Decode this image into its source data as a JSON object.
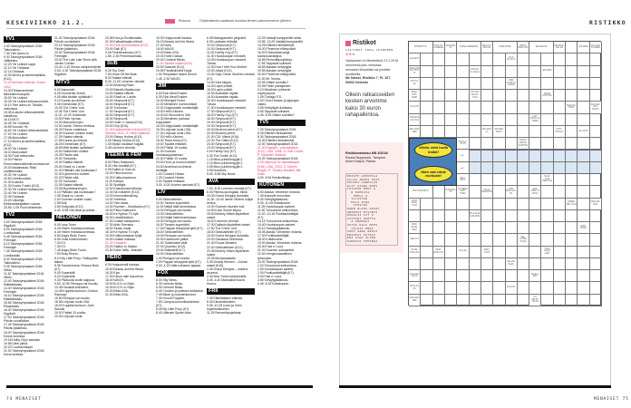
{
  "header": {
    "left_title": "KESKIVIIKKO 21.2.",
    "legend_label": "Elokuva",
    "notice": "Ohjelmatiedot saattavat muuttua lehden painoonmenon jälkeen.",
    "right_title": "RISTIKKO",
    "film_color": "#e0406f",
    "accent": "#e7577f"
  },
  "footer": {
    "left": "74 MENAISET",
    "right": "MENAISET 75"
  },
  "columns": [
    [
      {
        "channel": "TV1",
        "items": [
          "4.40 Talviolympialaiset 2018: Taitoluistelu.",
          "7.30 Ylen Aamu-tv.",
          "9.00 Talviolympialaiset 2018: Jääkiekko.",
          "12.03 Yle Uutiset Lappi.",
          "12.10 Yle Oddasat.",
          "12.14 Oddasat.",
          "12.30 Murha ja kantrimusiikkia (K12).",
          {
            "t": "13.20 Morsian vihkiväs. Suomi, 1941.",
            "film": true
          },
          "14.30 Rintamamiehen talonrakennusopas.",
          "15.00 Yle Uutiset.",
          "15.05 Yle Uutiset selkosuomeksi.",
          "15.10 Ylen aamu-tv: Tänään otsikoissa.",
          "15.45 A-studio viittomakielellä tulkattuna.",
          "16.15 MOT.",
          "16.45 Yle Oddasat.",
          "16.55 Novosti Yle.",
          "16.59 Yle Uutiset viittomakielellä.",
          "17.00 Yle Uutiset.",
          "17.08 Alueuutiset.",
          "17.10 Murha ja kantrimusiikkia (K12).",
          "18.00 Yle Uutiset.",
          "18.22 Alueuutiset.",
          "18.30 Puoli seitsemän.",
          "19.00 Prisma: Ennennäkemättömät luontokuvat.",
          "20.00 Maailmasta: Rikki uhattelemalla.",
          "20.30 Yle Uutiset.",
          "20.50 Urheiluuutiset.",
          "21.00 A-studio.",
          "21.30 Doctor Foster (K12).",
          "22.30 Yle Uutiset Uutissuomi.",
          "22.40 Yle Uutiset.",
          "22.45 Oddasat.",
          "23.00 Ulkolinja: Elektroniikkajätteen vaarat.",
          "23.55 -0.25 Puoli seitsemän."
        ]
      },
      {
        "channel": "TV2",
        "items": [
          "4.00 Talviolympialaiset 2018: Kigpilotit.",
          "5.00 Talviolympialaiset 2018: Lumilautailu.",
          "5.45 Talviolympialaiset 2018: Freestyle.",
          "6.10 Talviolympialaiset 2018: Freestyle.",
          "7.45 Talviolympialaiset 2018: Lumilautailu.",
          "8.30 Talviolympialaiset 2018: Taitoluistelu.",
          "9.05 Talviolympialaiset 2018: Hiihto.",
          "11.30 Talviolympialaiset 2018: Hiihto.",
          "12.40 Talviolympialaiset 2018: Rattikelkkailu.",
          "14.40 Talviolympialaiset 2018: Freestyle.",
          "15.10 Talviolympialaiset 2018: Rattikelkkailu.",
          "15.55 Talviolympialaiset 2018: Pikaluistelu.",
          "16.40 Talviolympialaiset 2018: Kigpilotit.",
          "17.00 Talviolympialaiset 2018: Päivän suosikkiset.",
          "17.45 Talviolympialaiset 2018: Päivän jääkiekko.",
          "18.00 Talviolympialaiset 2018: Koose lunnissa.",
          "19.18 Holby Cityn sairaala.",
          "19.58 Ulesi päivä.",
          "20.20 Cuveldonsiaali.",
          "21.00 Talviolympialaiset 2018: Korva luniissa."
        ]
      }
    ],
    [
      {
        "channel": "",
        "items": [
          "21.30 Talviolympialaiset 2018: Päivän suosikkiset.",
          "23.15 Talviolympialaiset 2018: Päivän jääkiekko.",
          "23.30 Talviolympialaiset 2018: Freestyle.",
          "23.00 The Late Late Show with James Corden.",
          "23.40 -0.10 Rouva varapresidentti.",
          "3.05 -4.30 Talviolympialaiset 2018: Kigpilotit."
        ]
      },
      {
        "channel": "MTV3",
        "items": [
          "6.00 Aamusää.",
          "6.25 Huomenta Suomi.",
          "9.05 Mitä tänään syötäisiin?",
          "9.10 Kaunis ja rohkeat.",
          "9.35 Emmerdale (K7).",
          "10.05 The Chefs' Line.",
          "10.35 The Chefs' Line.",
          "11.00 -12.00 Kokkisota.",
          "13.00 Peter Nyman.",
          "14.00 Manuela kojeo.",
          "14.30 Jamie: Olivera herkkua.",
          "15.30 Pinnan mattoissa.",
          "16.30 Suomen surkein kuski.",
          "17.25 Salatut elämät.",
          "17.55 Kaunis ja rohkeat.",
          "18.25 Emmerdale (K7).",
          "18.55 Mitä tänään syötäisiin?",
          "19.00 Seitsemän Uutiset.",
          "19.25 Päivän sää.",
          "19.30 Tuhkanan.",
          "19.30 Salatut elämät.",
          "20.00 Shadi vs. Lande.",
          "21.00 Pitäisikö olla huolissaan?",
          "22.00 Kymmenen Uutiset.",
          "22.20 Päivän sää.",
          "22.25 Tuhkanan.",
          "22.35 Salatut elämät.",
          "23.05 Myyräntraumojen.",
          "0.10 Pitäisikö olla huolissaan?",
          "1.05 Shadi vs. Lande.",
          "2.00 Suomen surkein kuski.",
          "2.55 Bull.",
          "3.50 Hollyoaks (K12).",
          "4.40 -5.55 Ole rahat ja poikse."
        ]
      },
      {
        "channel": "NELONEN",
        "items": [
          "6.00 Lazy Town.",
          "6.25 Hiisen Hokkasuomiesaa.",
          "6.40 Hiisen Hokkasuomiesaa.",
          "6.50 Angry Birds Toons.",
          "6.55 Sofia ensimmäinen.",
          "7.20 K3.",
          "7.30 K3.",
          "7.45 Angry Birds Toons.",
          "7.50 Busy Rivers.",
          "8.10 My Little Pony: Ystävyyden taikaa.",
          "8.35 Transformers: Rescue Bots (K7).",
          "9.00 Supersiitti.",
          "9.20 Supersiitti.",
          "9.30 Pikakunsi kodin saippua.",
          "9.50 -10.50 Remppa vai muutto.",
          "13.45 Hauskat kotivideot.",
          "14.45 Kuppilat kuntoon, Gordon Ramsay!",
          "15.50 Remppa vai muutto.",
          "16.55 Leijonan luola USA.",
          "18.00 Kuppilat kuntoon, Jyrki Sukula!",
          "19.00 Poliisit 10 vuotta.",
          "20.00 Leijonan luola."
        ]
      }
    ],
    [
      {
        "channel": "",
        "items": [
          "20.58 Kers ja Suvitaivaalla.",
          "21.00 Kattoahtaajan elämä.",
          {
            "t": "22.00 Perin pennevillissä (K12).",
            "film": true
          },
          "23.00 Salli (K7).",
          "0.05 Perintöraamasu (K7).",
          "1.55 -2.30 Perintöraamasu."
        ]
      },
      {
        "channel": "SUB",
        "items": [
          "6.25 Top Chef.",
          "7.00 Hook Off the Boat.",
          "8.00 Salatut elämät.",
          "8.30 -11.00 Lemmen viemää.",
          "12.00 Amazing Race.",
          "13.00 Blandis Mystiscope.",
          "14.00 Salatut elämät.",
          "14.30 Shadi vs. Lande.",
          "15.00 Simpsonit (K7).",
          "16.00 Simpsonit (K7).",
          "16.30 Tuhkanan.",
          "17.00 Simpsonit (K7).",
          "18.00 Simpsonit (K7).",
          "18.30 Simpsonit.",
          "19.00 Hotel -0 Jaana (K16).",
          "20.00 Guy (K16).",
          {
            "t": "21.00 Kadonneiden Hirmut (K12). Ranska, 2011. O: Henri Natacha.",
            "film": true
          },
          "23.00 Sleepy Hollow (K12).",
          "0.00 Sleepy Hollow (K12).",
          "1.00 Myllyn kaufasm huijyllä.",
          "2.45 Lemmen viemää."
        ]
      },
      {
        "channel": "TEEMA & FEM",
        "items": [
          "6.00 Pikku Kakkonen.",
          "8.20 Ylen kantiillä (K7).",
          "9.05 Kaikki on ihan ok.",
          "10.00 Pikku kunnon.",
          "10.30 Kulttuuriavaruus.",
          "11.00 Kampa.",
          "11.30 Spotlight.",
          "12.00 Kaanoimaan lähetys.",
          "12.30 Sin näkkeen (K12).",
          "13.00 Innocentbreaking.",
          "13.30 Yokitrivia.",
          "14.00 Ylen kaasi.",
          "14.30 Rauhari – Muotisalon (K7).",
          "15.00 Pikku Kakkonen.",
          "16.00 Ke Nybrar TV-nytt.",
          "16.30 Leksikblokken.",
          "17.00 Uutiset rakkauteen.",
          "17.30 Arkki Svenska.",
          "18.00 Studio maail.",
          "18.30 Ke Nybrar TV-nytt.",
          "19.00 Kulttuurivaaran tyhjä.",
          "19.30 Uutiset maksaa.",
          {
            "t": "21.30 Chaplinin",
            "film": true
          },
          "23.20 Station to Station.",
          "23.50 Sami Yaffa - Ihtacker."
        ]
      },
      {
        "channel": "HERO",
        "items": [
          "6.30 Hulppomalli haussa.",
          "15.00 Beauty and the Beast.",
          "16.30 Epic.",
          "17.00 Kirkon laite kokoelma.",
          "18.00 WAGS.",
          "19.00 B.O.N. to Style.",
          "19.30 B.O.N. to Style.",
          "20.00 Bella USA.",
          "21.00 Bella USA."
        ]
      }
    ],
    [
      {
        "channel": "",
        "items": [
          "15.30 Hulppomalli haussa.",
          "16.15 Beauty and the Beast.",
          "17.00 Idols.",
          "18.00 WAGS.",
          "19.00 Bella USA.",
          "19.30 Hotel Caesar.",
          "20.00 Criminal Minds.",
          {
            "t": "21.00 Taloani orjaan (K16).",
            "film": true
          },
          "23.50 Scandal (K12).",
          "23.55 Paratiisihotelli Norja.",
          "1.00 Temptation Island Suomi.",
          "1.45 -2.30 WAGS."
        ]
      },
      {
        "channel": "JIM",
        "items": [
          "6.00 Epic Meal Empire.",
          "6.30 Epic Meal Empire.",
          "10.00 Midnight Feast.",
          "11.00 Mestimen muhvimestari.",
          "12.00 Hulppulastin metsästäjät.",
          "13.00 Hell's Kitchen.",
          "14.00 60 Seconds to Sell.",
          "14.30 Mestimen parhaat huipulaiset.",
          "15.30 Hulppulastin metsästäjät.",
          "16.30 Leijonan luola USA.",
          "17.00 Leijonan luola USA.",
          "17.30 Hell's Kitchen.",
          "18.30 Team Anna (K7).",
          "19.00 Tipaleti erillaiset.",
          "20.00 Poliisit 10 vuotta.",
          "21.00 Suomen huutokauppakeisari.",
          "22.00 Poliisit 10 vuotta.",
          "23.00 Hoot- ja huonot uutiset.",
          "24.00 Amerikan kovimmat keräilijät.",
          "1.00 Consent Heads.",
          "1.30 Consent Heads.",
          "2.00 Tipaleti erillaiset.",
          "3.00 -4.00 Vuorien sankarit (K7)."
        ]
      },
      {
        "channel": "LIV",
        "items": [
          "9.00 Sinkkutellinen.",
          "10.00 Tanssin supertähti.",
          "11.00 Neljät häät Amerikassa.",
          "13.00 Remppa vai muutto.",
          "13.00 Sinkkutellinen.",
          "14.00 Neljät häät Amerikassa.",
          "15.00 Remppa vai muutto.",
          "16.00 Tanssin supertähti.",
          "17.00 Pappan tekopyhät tytöt (K7).",
          "18.00 Sinkkutellinen.",
          "19.00 Remppa vai muutto.",
          "20.00 Kadonneet pätkä.",
          "21.00 Toisenlaiset äidit.",
          "22.00 Quantico (K12).",
          "23.00 Nalkuttelit (K7).",
          "24.00 Sinkkutellinen.",
          "1.00 Remppa vai muutto.",
          "2.00 Pappan tekopyhät tytöt (K7).",
          "3.00 -4.15 Häät sulhasen tapaan."
        ]
      },
      {
        "channel": "FOX",
        "items": [
          "6.00 Sky News.",
          "6.30 Lehmän Nikku.",
          "6.30 Lehmän Nikku.",
          "6.40 Chuckin ja ystävien seikkailut.",
          "7.05 Blaze ja monsterikoneet.",
          "7.30 Hound Puppies.",
          "7.50 Campus-kummitustoimisto (K7).",
          "8.30 My Little Pony (K7).",
          "8.40 Ultimate Spider-Man."
        ]
      }
    ],
    [
      {
        "channel": "",
        "items": [
          "6.05 Madagascarin pingviinit.",
          "6.30 Lastkaan elämää.",
          "10.00 Simpsonit (K7).",
          "10.30 Simpsonit (K7).",
          "11.00 Family Guy (K7).",
          "11.30 Huutokaupan mestarit.",
          "12.00 Huutokaupan mestarit: Tolvaa.",
          "12.30 How I Met Your Mother.",
          "13.00 Jalpia (K12).",
          "13.30 Stop Crime: Murhien mestari (K7).",
          "14.00 Sani kiippia.",
          "14.30 Lapin poliisit.",
          "15.00 Lapin poliisit.",
          "15.30 Australian rajalla.",
          "16.00 Australian rajalla.",
          "16.30 Huutokaupan mestarit: Tolvaa.",
          "17.00 Huutokaupan mestarit.",
          "17.30 Simpsonit (K7).",
          "18.00 Family Guy (K7).",
          "18.30 Simpsonit (K7).",
          "19.00 Simpsonit (K7).",
          "19.30 Simpsonit (K7).",
          "20.00 Moderni perhe (K7).",
          "20.30 Moderni perhe.",
          "21.00 CSI: Miami (K16).",
          "22.00 The Gifted (K12).",
          "23.00 Simpsonit (K7).",
          "23.30 Simpsonit (K7).",
          "0.00 Family Guy (K7).",
          "0.30 The Orville (K12).",
          "1.15 Iiffun puhelinmyyjät 2.",
          "2.10 Iiffun puhelinmyyjät 2.",
          "3.05 Iiffun puhelinmyyjät 2.",
          "3.55 Numb3rs.",
          "5.05 -5.58 Sky News."
        ]
      },
      {
        "channel": "AVA",
        "items": [
          "7.00 -8.30 Lemmen viemää (K7).",
          "8.30 Fitness-kuningatar Jillian.",
          "10.30 Grand Designs Australia.",
          "11.30 -13.00 Jamie Oliverin kotijat herkut.",
          "13.00 Suomen kaunein koti.",
          "14.00 Koko Suomi leipoo.",
          "15.00 Beverly Hillsin täydelliset naiset.",
          "16.00 Lemmen viemää.",
          "17.00 Dallasin täydelliset naiset.",
          "17.50 The Chefs' Line.",
          "18.00 Sinkkutellinen (K7).",
          "19.00 Grand Designs Australia.",
          "20.00 Samassa Seimessä.",
          "21.00 Rouva Ministeri.",
          "22.00 Sinkkutellinen (K12).",
          "23.35 Beverly Hillsin täydelliset naiset.",
          "23.35 Mustamaalattu.",
          "0.30 Deadly Women – Julmat naiset (K16).",
          "1.35 Grand Designs – unelma asunnot.",
          "2.40 New Yorkin lukkoluksille.",
          "3.40 -4.40 Manualisti Noora Kerma."
        ]
      },
      {
        "channel": "FRII",
        "items": [
          "7.45 Eläinlääkärin elämää.",
          "8.40 Kiinakokkokeen.",
          "9.35 -10.25 Ivnon ja Verin superkeikkuelen.",
          "11.25 Remonttiprojekteja."
        ]
      }
    ],
    [
      {
        "channel": "",
        "items": [
          "12.25 Vastaiji kumppaniltö seksi.",
          "13.55 -13.25 Vastaiji kumppaniltö.",
          "14.25 Eläinten tentsikentät.",
          "15.00 Phoenixin eläinpoliisit.",
          "16.00 Ehdonalaisvangit koiranloukuttajina.",
          "16.55 Remonttiprojekteja.",
          "17.55 Tappavat sulhaset.",
          "18.55 Alaskan selviytyjät.",
          "19.55 Alaskan selviytyjät.",
          "20.00 Phoenixin eläinpoliisit.",
          "21.00 Mr. Murha.",
          "22.05 Väärin tuomittu?",
          "23.05 Pahin painajainen.",
          "0.10 Mestimen juhlomat superpurjoat.",
          "1.05 Chicago P.D.",
          "2.00 Chris Hansen ja tappajan vaisto.",
          "3.55 Selviytyjät duAlaska.",
          "3.55 Tappavat sulhaset.",
          "4.45 -5.53 Väärin tuomittu?"
        ]
      },
      {
        "channel": "TV5",
        "items": [
          "7.25 Talviolympialaiset 2018.",
          "8.05 Eläinten tentsikentät.",
          "8.30 Talviolympialaiset 2018.",
          "10.30 Eläinten tentsikentät.",
          "12.00 Talviolympialaiset 2018.",
          {
            "t": "21.00 Daylight – pakokäytävä (K12). USA, 1996. O: Rob Cohen. P: Sylvester Stallone.",
            "film": true
          },
          "23.20 Talviolympialaiset 2018.",
          {
            "t": "3.25 Veljeni ja se naimakaupat (K16). USA, 2003. O: Dennis Dugan. P: Timothy Busfield, Bill Duke.",
            "film": true
          },
          "4.00 -5.54 Kiesikoikkaja."
        ]
      },
      {
        "channel": "KUTONEN",
        "items": [
          "6.50 Alaska: Viimeinen rintama.",
          "7.45 Autovaili remontoin.",
          "8.40 Selviytyjäkakkolu.",
          "9.00 -10.25 Kultakuume.",
          "11.25 Huutokaupan aarteet.",
          "11.50 Tuhoutunut seikumiesa.",
          "12.20 -13.15 Pontikankeittäjät (K7).",
          "14.15 Tuhoutunut seikumiesa.",
          "14.40 Huutokaupan aarteet.",
          "15.10 Selviytyjäkakkolu.",
          "16.05 Alaska: Viimeinen rintama.",
          "17.00 Pontikankeittäjät.",
          "18.00 Kultakuume.",
          "19.00 Alaska: Viimeinen rintama.",
          "20.00 Fast n' Loud.",
          "21.00 Suomen autoaarteet.",
          "22.00 Hengenvaarallinen työsuojelu.",
          "23.00 Talviolympialaiset 2018.",
          "1.00 Tuhoutunut seikumiesa.",
          "1.50 Huutokaupan aarteet.",
          "2.00 Pontikankeittäjät (K7).",
          "3.00 Fast n' Loud.",
          "3.55 Selviytyjäkakkolu.",
          "4.45 -5.33 Kultakuume."
        ]
      }
    ]
  ],
  "ristikot": {
    "logo": "Ristikot",
    "author": "LAATINUT JUHA LEINONEN",
    "stars": "★★★",
    "instructions": "Vastaukset on lähetettävä 21.2.2018 mennessä joko verkossa menaiset.fi/osallistu tai postitse osoitteella:",
    "address": "Me Naiset, Ristikko 7, PL 107, 00002 Helsinki",
    "prize": "Oikein ratkaisseiden kesken arvomme kaksi 30 euron rahapalkintoa.",
    "solution_title": "Ristikkoratkaisu MN 3/2018:",
    "winners": [
      "Rauha Nuppunen, Tampere",
      "Anne Katava, Parma"
    ],
    "solution_rows": [
      "ERISTE LEPOTILA",
      "ALLAS ARAPS OSAS",
      "SELKKI VANKILIA",
      "ALAT ASARA NAPS",
      "TATIRTR EMOT A",
      "  N KUMISTA",
      "   OPELI U",
      "  ILLASTAR",
      "  MILA IIRA",
      "   TUISTUA",
      "KARN ULIOS UKSAT",
      "UNIKOOT ETSINTA",
      "OSOOLII IIT O",
      "LOTTAUT OVETTA",
      "  A SNOERAT",
      "OSTOS KALI MIES",
      "  TILOIT ENSI",
      "SOPI SANA ARVAT",
      "ERAUIAS PATSAT",
      "ENI UJOA ALIKU",
      "SAMOATA TEEINSA"
    ]
  },
  "crossword": {
    "bubble_1": "Niinkö, mikä tuolla lentää?",
    "bubble_2": "Näen vain nämä muhkurat!",
    "highlight_color": "#dbe7f3",
    "clues": [
      "PIHISTETTU",
      "POLT-TO-AI-NEENA",
      "RAP-PAR-IN",
      "KARVA-HEMMOKE",
      "MAIS-TO-MU-KSI",
      "UMALOISSA",
      "JOHTO-NAUR-TAT",
      "SELKIÄVÄS",
      "MIN-NOS-LAU-KE",
      "JÄÄ-MIES",
      "KÖL-KAS-TU-NEEN",
      "ELÄ-MÄT",
      "NEVA-DAN KAU-PUN-KI",
      "HOT-TA-VA",
      "SEKA-KOH-TEEN",
      "TA-LOUS",
      "SOR-RON ALAI-SIA",
      "KELI-KOP-TERI",
      "ULLA ALLO-LA",
      "KAR-SA-TU-KALLA",
      "EST-EKS",
      "OMA KAUHUN LASSE",
      "VAT-ISIA HELLO-TURI",
      "MONA KOH-TAA",
      "KES-TÄÄ-TRÄN",
      "KAN-SIO-KAU-PASTA",
      "KAH-VAUS-LAI-TERIA",
      "VAN-NOK-LA",
      "SEI-MAN ESKO",
      "KYSY-MYS-LÄ",
      "EL-USTO",
      "TUS-LA-TA-VA",
      "VALAN-VARSA-KAIHTON",
      "KELY-KETY",
      "NAJA-JOKI HEIS-TÄÄ",
      "ISOI UUKONKIN",
      "HUR-RAA-VA",
      "TIV-SEEN NON-TOMA",
      "VOLLÄ PAR-NANS",
      "LOHI-KON-TUO-TE",
      "SÄÄ-RISTYN SONA",
      "SATU-OLEN-TOJA",
      "ENNEN TEH-TÄVÄ",
      "NEIS-MÄ-NEN",
      "PIL-LOLLE LUM-MON",
      "SORI-NOUN-SIILO",
      "SOIN-NUOLI",
      "SEK-TIO",
      "VEL-OUTAN KOOS",
      "NI-KIN-PUO-LET",
      "NEST-MAN-TUO",
      "TAI-LAA",
      "KEKT-TULIA",
      "HAN-KALAT AJET",
      "SE-LAN KAAS",
      "E-ALKKU KUUN",
      "SE-ALA-MÄT",
      "TEYS-TÄ-VÄ",
      "JOI-KUU",
      "KRÄ-NAH-HEK",
      "SU-HELTA-JALLA"
    ]
  }
}
